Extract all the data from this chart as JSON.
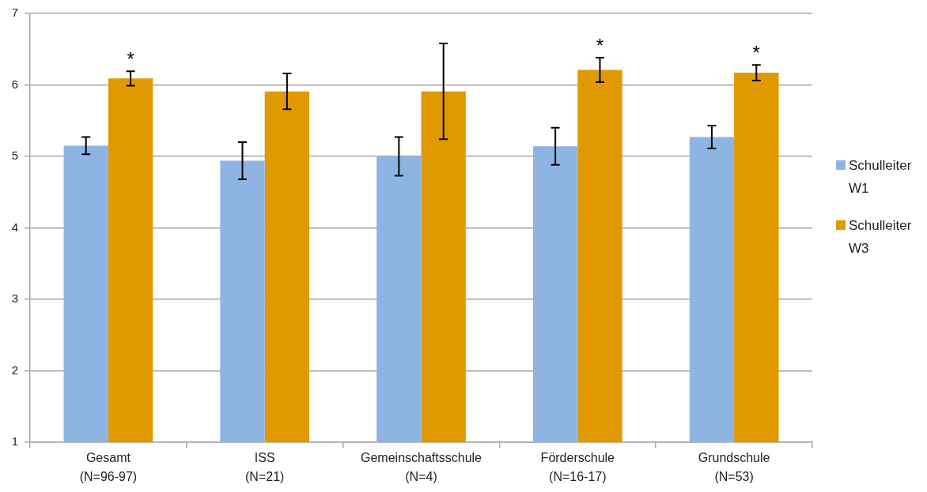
{
  "chart_data": {
    "type": "bar",
    "categories": [
      "Gesamt (N=96-97)",
      "ISS (N=21)",
      "Gemeinschaftsschule (N=4)",
      "Förderschule (N=16-17)",
      "Grundschule (N=53)"
    ],
    "series": [
      {
        "name": "Schulleiter W1",
        "color": "#8eb4e3",
        "values": [
          5.15,
          4.94,
          5.0,
          5.14,
          5.27
        ],
        "errors": [
          0.12,
          0.26,
          0.27,
          0.26,
          0.16
        ]
      },
      {
        "name": "Schulleiter W3",
        "color": "#e09a00",
        "values": [
          6.09,
          5.91,
          5.91,
          6.21,
          6.17
        ],
        "errors": [
          0.1,
          0.25,
          0.67,
          0.17,
          0.11
        ]
      }
    ],
    "ylim": [
      1,
      7
    ],
    "yticks": [
      1,
      2,
      3,
      4,
      5,
      6,
      7
    ],
    "grid": "y",
    "legend": "right",
    "annotations": [
      {
        "text": "*",
        "x": "Gesamt (N=96-97)",
        "y": 6.09
      },
      {
        "text": "*",
        "x": "Förderschule (N=16-17)",
        "y": 6.21
      },
      {
        "text": "*",
        "x": "Grundschule (N=53)",
        "y": 6.17
      }
    ]
  }
}
